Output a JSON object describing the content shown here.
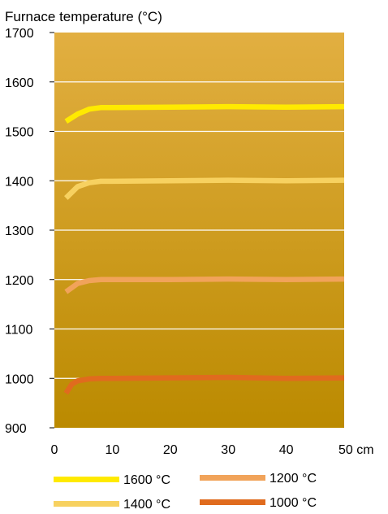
{
  "chart_data": {
    "type": "line",
    "title": "Furnace temperature (°C)",
    "xlabel": "",
    "ylabel": "",
    "x_unit": "cm",
    "xlim": [
      0,
      50
    ],
    "ylim": [
      900,
      1700
    ],
    "xticks": [
      0,
      10,
      20,
      30,
      40,
      50
    ],
    "yticks": [
      900,
      1000,
      1100,
      1200,
      1300,
      1400,
      1500,
      1600,
      1700
    ],
    "grid": "horizontal",
    "legend_position": "bottom",
    "background_gradient": [
      "#e2af41",
      "#bb8a00"
    ],
    "series": [
      {
        "name": "1600 °C",
        "color": "#ffea00",
        "x": [
          2,
          4,
          6,
          8,
          10,
          20,
          30,
          40,
          50
        ],
        "y": [
          1520,
          1535,
          1545,
          1548,
          1548,
          1549,
          1550,
          1549,
          1550
        ]
      },
      {
        "name": "1400 °C",
        "color": "#f7d160",
        "x": [
          2,
          4,
          6,
          8,
          10,
          20,
          30,
          40,
          50
        ],
        "y": [
          1365,
          1388,
          1396,
          1399,
          1399,
          1400,
          1401,
          1400,
          1401
        ]
      },
      {
        "name": "1200 °C",
        "color": "#f1a35a",
        "x": [
          2,
          4,
          6,
          8,
          10,
          20,
          30,
          40,
          50
        ],
        "y": [
          1175,
          1192,
          1198,
          1200,
          1200,
          1200,
          1201,
          1200,
          1201
        ]
      },
      {
        "name": "1000 °C",
        "color": "#e06b1e",
        "x": [
          2,
          3,
          4,
          6,
          8,
          10,
          20,
          30,
          40,
          50
        ],
        "y": [
          970,
          988,
          995,
          999,
          1000,
          1000,
          1001,
          1002,
          1000,
          1001
        ]
      }
    ]
  }
}
